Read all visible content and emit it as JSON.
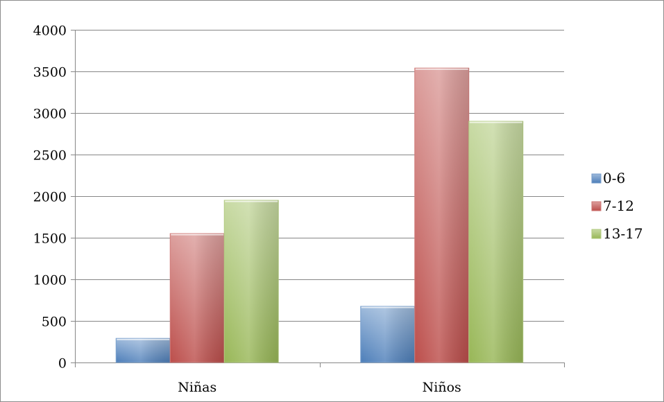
{
  "chart_data": {
    "type": "bar",
    "categories": [
      "Niñas",
      "Niños"
    ],
    "series": [
      {
        "name": "0-6",
        "values": [
          290,
          675
        ],
        "color": "#4f81bd"
      },
      {
        "name": "7-12",
        "values": [
          1550,
          3540
        ],
        "color": "#c0504d"
      },
      {
        "name": "13-17",
        "values": [
          1950,
          2900
        ],
        "color": "#9bbb59"
      }
    ],
    "ylim": [
      0,
      4000
    ],
    "yticks": [
      0,
      500,
      1000,
      1500,
      2000,
      2500,
      3000,
      3500,
      4000
    ],
    "grid": true,
    "legend_position": "right",
    "title": "",
    "xlabel": "",
    "ylabel": ""
  }
}
